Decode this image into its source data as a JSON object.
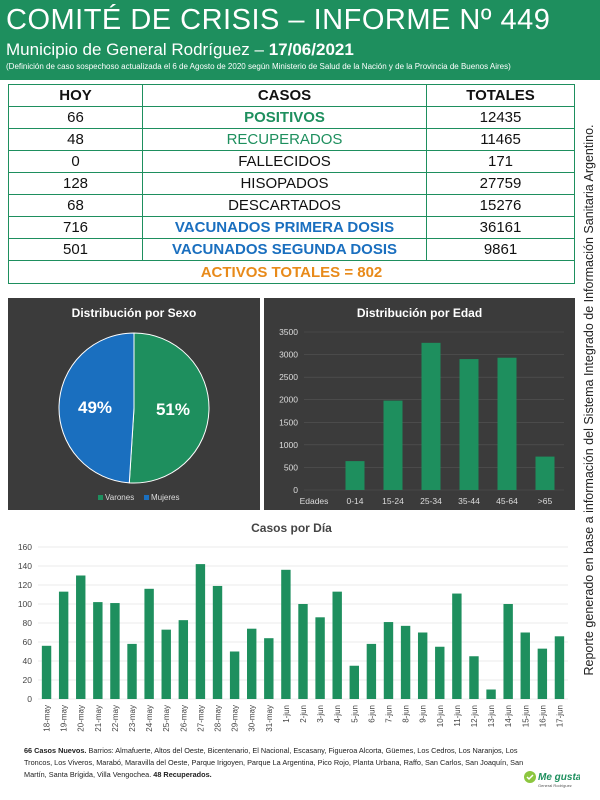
{
  "header": {
    "title": "COMITÉ DE CRISIS – INFORME Nº 449",
    "subtitle": "Municipio de General Rodríguez –",
    "date": "17/06/2021",
    "note": "(Definición de caso sospechoso actualizada el 6 de Agosto de 2020 según Ministerio de Salud de la Nación y de la Provincia de Buenos Aires)"
  },
  "table": {
    "headers": [
      "HOY",
      "CASOS",
      "TOTALES"
    ],
    "rows": [
      {
        "hoy": "66",
        "casos": "POSITIVOS",
        "totales": "12435"
      },
      {
        "hoy": "48",
        "casos": "RECUPERADOS",
        "totales": "11465"
      },
      {
        "hoy": "0",
        "casos": "FALLECIDOS",
        "totales": "171"
      },
      {
        "hoy": "128",
        "casos": "HISOPADOS",
        "totales": "27759"
      },
      {
        "hoy": "68",
        "casos": "DESCARTADOS",
        "totales": "15276"
      },
      {
        "hoy": "716",
        "casos": "VACUNADOS PRIMERA DOSIS",
        "totales": "36161"
      },
      {
        "hoy": "501",
        "casos": "VACUNADOS SEGUNDA DOSIS",
        "totales": "9861"
      }
    ],
    "activos": "ACTIVOS TOTALES = 802"
  },
  "colors": {
    "green": "#1e8f5e",
    "blue": "#1a6fbf",
    "orange": "#e88a1a",
    "panel": "#3b3b3b"
  },
  "side_text": "Reporte generado en base a información del Sistema Integrado de Información Sanitaria Argentino.",
  "footer": {
    "bold_start": "66 Casos Nuevos.",
    "text": " Barrios: Almafuerte, Altos del Oeste, Bicentenario, El Nacional, Escasany, Figueroa Alcorta, Güemes, Los Cedros, Los Naranjos, Los Troncos, Los Viveros, Marabó, Maravilla del Oeste, Parque Irigoyen, Parque La Argentina, Pico Rojo, Planta Urbana, Raffo, San Carlos, San Joaquín, San Martín, Santa Brígida, Villa Vengochea.",
    "bold_end": " 48 Recuperados."
  },
  "logo": {
    "line1": "Me gusta",
    "line2": "General Rodríguez"
  },
  "chart_data": [
    {
      "type": "pie",
      "title": "Distribución por Sexo",
      "categories": [
        "Varones",
        "Mujeres"
      ],
      "values": [
        51,
        49
      ],
      "labels": [
        "51%",
        "49%"
      ],
      "colors": [
        "#1e8f5e",
        "#1a6fbf"
      ],
      "legend": "bottom"
    },
    {
      "type": "bar",
      "title": "Distribución por Edad",
      "xlabel": "Edades",
      "categories": [
        "0-14",
        "15-24",
        "25-34",
        "35-44",
        "45-64",
        ">65"
      ],
      "values": [
        640,
        1980,
        3260,
        2900,
        2930,
        740
      ],
      "ylim": [
        0,
        3500
      ],
      "yticks": [
        0,
        500,
        1000,
        1500,
        2000,
        2500,
        3000,
        3500
      ],
      "grid": true
    },
    {
      "type": "bar",
      "title": "Casos por Día",
      "categories": [
        "18-may",
        "19-may",
        "20-may",
        "21-may",
        "22-may",
        "23-may",
        "24-may",
        "25-may",
        "26-may",
        "27-may",
        "28-may",
        "29-may",
        "30-may",
        "31-may",
        "1-jun",
        "2-jun",
        "3-jun",
        "4-jun",
        "5-jun",
        "6-jun",
        "7-jun",
        "8-jun",
        "9-jun",
        "10-jun",
        "11-jun",
        "12-jun",
        "13-jun",
        "14-jun",
        "15-jun",
        "16-jun",
        "17-jun"
      ],
      "values": [
        56,
        113,
        130,
        102,
        101,
        58,
        116,
        73,
        83,
        142,
        119,
        50,
        74,
        64,
        136,
        100,
        86,
        113,
        35,
        58,
        81,
        77,
        70,
        55,
        111,
        45,
        10,
        100,
        70,
        53,
        66
      ],
      "ylim": [
        0,
        160
      ],
      "yticks": [
        0,
        20,
        40,
        60,
        80,
        100,
        120,
        140,
        160
      ],
      "grid": true
    }
  ]
}
